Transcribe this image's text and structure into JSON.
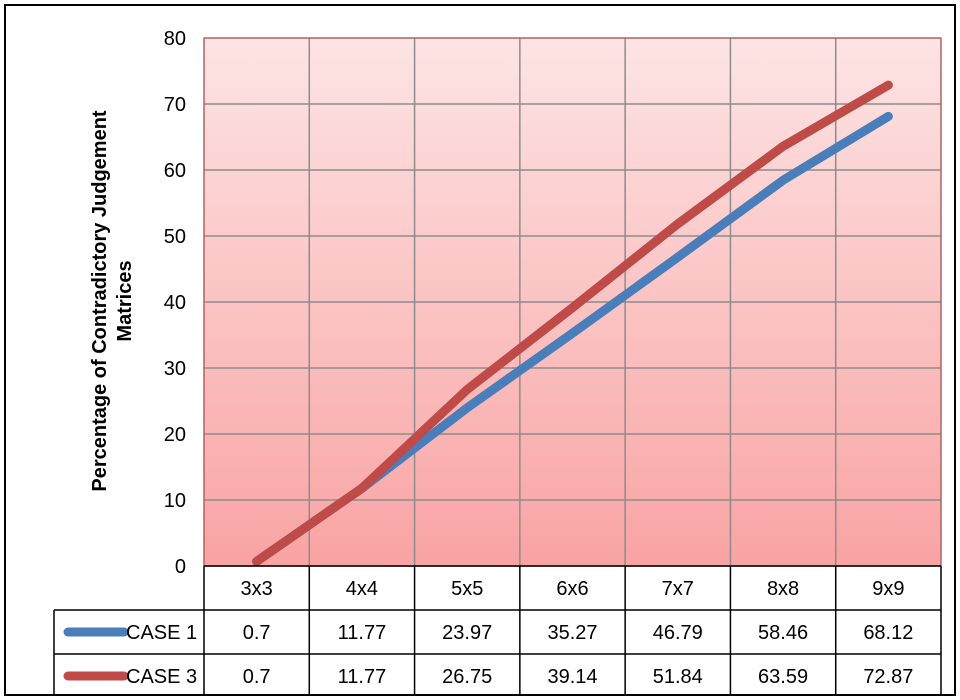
{
  "chart_data": {
    "type": "line",
    "title": "",
    "ylabel_line1": "Percentage of Contradictory Judgement",
    "ylabel_line2": "Matrices",
    "xlabel": "",
    "categories": [
      "3x3",
      "4x4",
      "5x5",
      "6x6",
      "7x7",
      "8x8",
      "9x9"
    ],
    "ylim": [
      0,
      80
    ],
    "yticks": [
      0,
      10,
      20,
      30,
      40,
      50,
      60,
      70,
      80
    ],
    "grid": true,
    "legend": "data-table",
    "series": [
      {
        "name": "CASE 1",
        "color": "#4a7ebb",
        "values": [
          0.7,
          11.77,
          23.97,
          35.27,
          46.79,
          58.46,
          68.12
        ]
      },
      {
        "name": "CASE 3",
        "color": "#be4b48",
        "values": [
          0.7,
          11.77,
          26.75,
          39.14,
          51.84,
          63.59,
          72.87
        ]
      }
    ],
    "plot_colors": {
      "top": "#fde4e4",
      "bottom": "#f9a3a3",
      "grid": "#8c8c8c"
    }
  }
}
